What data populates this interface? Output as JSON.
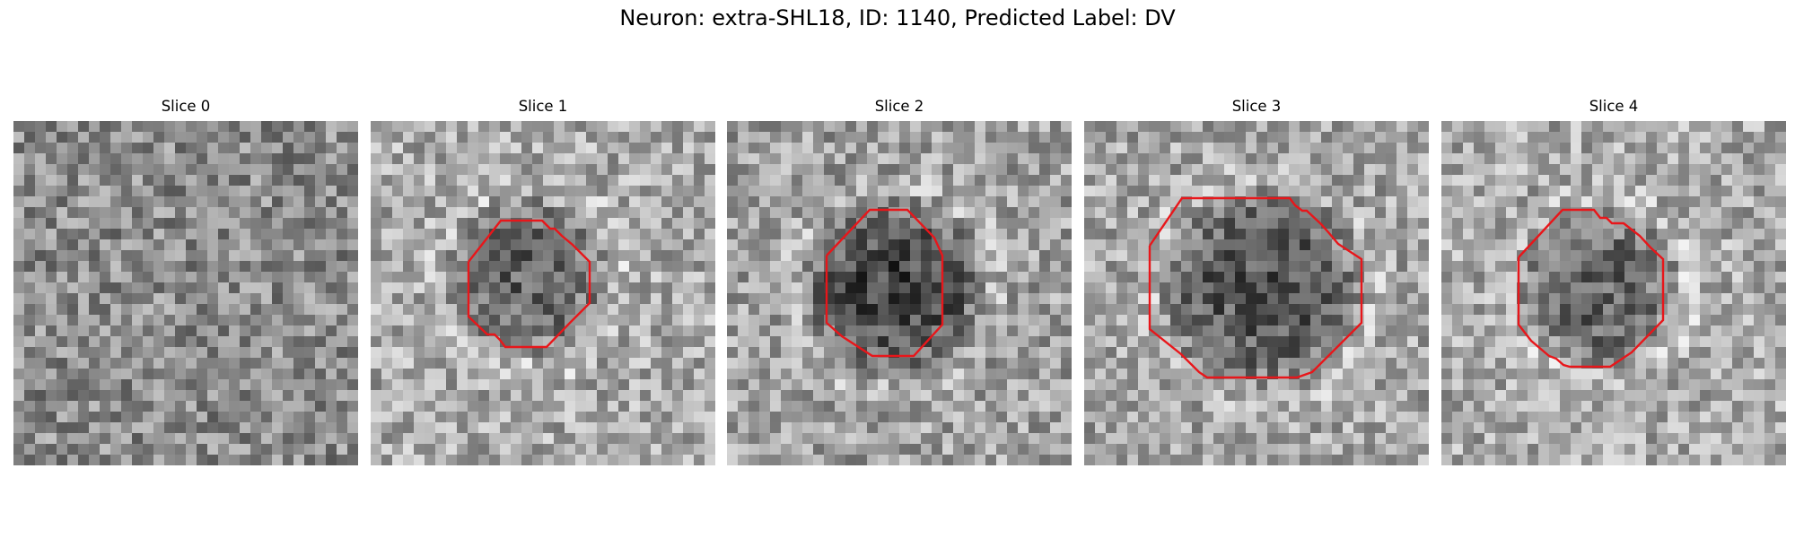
{
  "figure": {
    "title": "Neuron: extra-SHL18, ID: 1140, Predicted Label: DV"
  },
  "contour_color": "#e8161a",
  "panels": [
    {
      "title": "Slice 0",
      "has_contour": false
    },
    {
      "title": "Slice 1",
      "has_contour": true
    },
    {
      "title": "Slice 2",
      "has_contour": true
    },
    {
      "title": "Slice 3",
      "has_contour": true
    },
    {
      "title": "Slice 4",
      "has_contour": true
    }
  ]
}
